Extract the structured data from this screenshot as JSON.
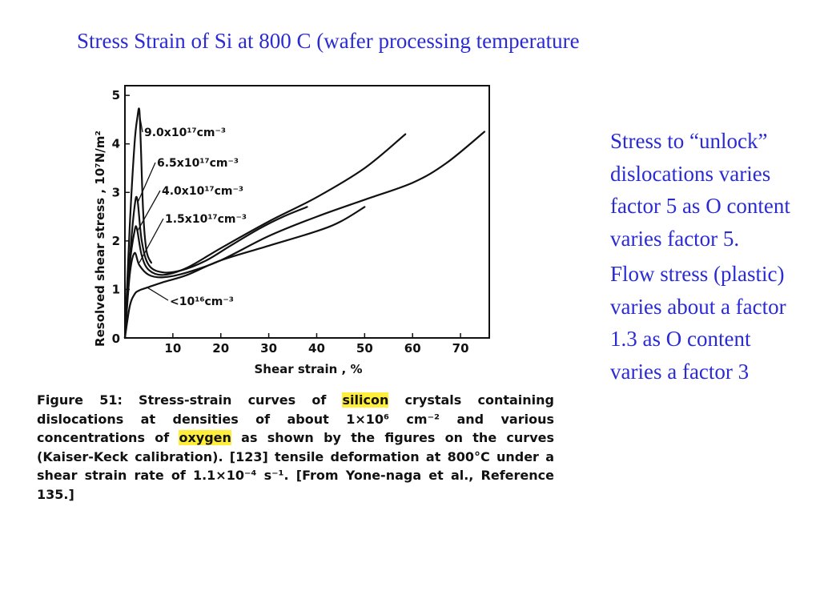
{
  "slide": {
    "title": "Stress Strain of Si at 800 C (wafer processing temperature"
  },
  "chart_data": {
    "type": "line",
    "xlabel": "Shear strain , %",
    "ylabel": "Resolved shear stress , 10⁷N/m²",
    "xlim": [
      0,
      76
    ],
    "ylim": [
      0,
      5.2
    ],
    "x_ticks": [
      "0",
      "10",
      "20",
      "30",
      "40",
      "50",
      "60",
      "70"
    ],
    "y_ticks": [
      "0",
      "1",
      "2",
      "3",
      "4",
      "5"
    ],
    "grid": false,
    "series": [
      {
        "name": "9.0x10¹⁷cm⁻³",
        "x": [
          0,
          1.0,
          2.0,
          2.6,
          3.0,
          3.3,
          3.8,
          4.5,
          5.5
        ],
        "y": [
          0,
          2.3,
          4.0,
          4.55,
          4.7,
          4.0,
          2.6,
          1.8,
          1.55
        ]
      },
      {
        "name": "6.5x10¹⁷cm⁻³",
        "x": [
          0,
          1.0,
          2.0,
          2.6,
          3.5,
          5,
          8,
          12,
          17,
          22,
          28,
          33,
          38
        ],
        "y": [
          0,
          1.6,
          2.7,
          2.85,
          2.0,
          1.5,
          1.35,
          1.4,
          1.6,
          1.9,
          2.25,
          2.5,
          2.7
        ]
      },
      {
        "name": "4.0x10¹⁷cm⁻³",
        "x": [
          0,
          1.0,
          2.0,
          2.5,
          3.5,
          5,
          8,
          13,
          20,
          30,
          40,
          50,
          58.5
        ],
        "y": [
          0,
          1.5,
          2.2,
          2.25,
          1.7,
          1.4,
          1.3,
          1.45,
          1.85,
          2.4,
          2.9,
          3.5,
          4.2
        ]
      },
      {
        "name": "1.5x10¹⁷cm⁻³",
        "x": [
          0,
          1.0,
          2.0,
          3.0,
          5,
          8,
          13,
          20,
          30,
          40,
          50,
          60,
          67,
          75
        ],
        "y": [
          0,
          1.3,
          1.75,
          1.5,
          1.3,
          1.25,
          1.35,
          1.6,
          2.1,
          2.5,
          2.85,
          3.2,
          3.6,
          4.25
        ]
      },
      {
        "name": "<10¹⁶cm⁻³",
        "x": [
          0,
          1.0,
          2.0,
          3.0,
          5,
          8,
          13,
          20,
          30,
          40,
          45,
          50
        ],
        "y": [
          0,
          0.65,
          0.9,
          0.98,
          1.05,
          1.15,
          1.3,
          1.6,
          1.9,
          2.2,
          2.4,
          2.7
        ]
      }
    ],
    "annotations": [
      {
        "text": "9.0x10¹⁷cm⁻³"
      },
      {
        "text": "6.5x10¹⁷cm⁻³"
      },
      {
        "text": "4.0x10¹⁷cm⁻³"
      },
      {
        "text": "1.5x10¹⁷cm⁻³"
      },
      {
        "text": "<10¹⁶cm⁻³"
      }
    ]
  },
  "caption": {
    "label": "Figure 51:",
    "t1": " Stress-strain curves of ",
    "hl1": "silicon",
    "t2": " crystals containing dislocations at densities of about 1×10⁶ cm⁻² and various concentrations of ",
    "hl2": "oxygen",
    "t3": " as shown by the figures on the curves (Kaiser-Keck calibration). [123] tensile deformation at 800°C under a shear strain rate of 1.1×10⁻⁴ s⁻¹. [From Yone-naga et al., Reference 135.]"
  },
  "notes": {
    "p1": "Stress to “unlock” dislocations varies factor 5 as O content varies factor 5.",
    "p2": "Flow stress (plastic) varies about a factor 1.3 as O content varies a factor 3"
  },
  "colors": {
    "accent": "#2b2bd4",
    "highlight": "#ffef3a",
    "ink": "#111111"
  }
}
